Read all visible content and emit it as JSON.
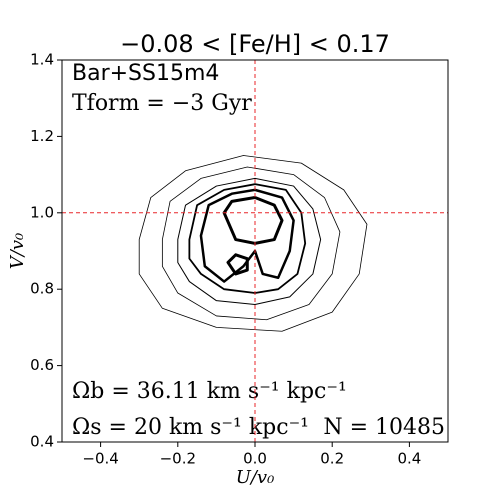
{
  "chart_data": {
    "type": "contour",
    "title": "−0.08 < [Fe/H] < 0.17",
    "x_label": "U/v₀",
    "y_label": "V/v₀",
    "annotations": [
      "Bar+SS15m4",
      "Tform = −3 Gyr",
      "Ωb = 36.11 km s⁻¹ kpc⁻¹",
      "Ωs = 20 km s⁻¹ kpc⁻¹",
      "N = 10485"
    ],
    "xlim": [
      -0.5,
      0.5
    ],
    "ylim": [
      0.4,
      1.4
    ],
    "xticks": [
      {
        "value": -0.4,
        "label": "−0.4"
      },
      {
        "value": -0.2,
        "label": "−0.2"
      },
      {
        "value": 0,
        "label": "0.0"
      },
      {
        "value": 0.2,
        "label": "0.2"
      },
      {
        "value": 0.4,
        "label": "0.4"
      }
    ],
    "yticks": [
      {
        "value": 0.4,
        "label": "0.4"
      },
      {
        "value": 0.6,
        "label": "0.6"
      },
      {
        "value": 0.8,
        "label": "0.8"
      },
      {
        "value": 1.0,
        "label": "1.0"
      },
      {
        "value": 1.2,
        "label": "1.2"
      },
      {
        "value": 1.4,
        "label": "1.4"
      }
    ],
    "hlines": [
      1.0
    ],
    "vlines": [
      0
    ],
    "ref_color": "#e8262a",
    "color": "#000000",
    "series": [
      {
        "linewidth": 0.8,
        "x": [
          -0.3,
          -0.27,
          -0.18,
          -0.03,
          0.12,
          0.23,
          0.29,
          0.27,
          0.2,
          0.07,
          -0.1,
          -0.24,
          -0.3
        ],
        "y": [
          0.93,
          1.04,
          1.11,
          1.15,
          1.13,
          1.06,
          0.97,
          0.84,
          0.74,
          0.69,
          0.7,
          0.75,
          0.84
        ]
      },
      {
        "linewidth": 0.8,
        "x": [
          -0.24,
          -0.22,
          -0.14,
          -0.02,
          0.1,
          0.18,
          0.22,
          0.2,
          0.14,
          0.03,
          -0.1,
          -0.2,
          -0.24
        ],
        "y": [
          0.93,
          1.03,
          1.09,
          1.12,
          1.1,
          1.04,
          0.95,
          0.84,
          0.76,
          0.72,
          0.73,
          0.79,
          0.86
        ]
      },
      {
        "linewidth": 1,
        "x": [
          -0.2,
          -0.18,
          -0.1,
          0,
          0.1,
          0.15,
          0.17,
          0.15,
          0.09,
          0,
          -0.1,
          -0.17,
          -0.2
        ],
        "y": [
          0.93,
          1.02,
          1.07,
          1.09,
          1.07,
          1.01,
          0.93,
          0.84,
          0.78,
          0.76,
          0.77,
          0.82,
          0.87
        ]
      },
      {
        "linewidth": 1.8,
        "x": [
          -0.17,
          -0.15,
          -0.08,
          0,
          0.08,
          0.12,
          0.13,
          0.11,
          0.06,
          0,
          -0.08,
          -0.14,
          -0.17
        ],
        "y": [
          0.93,
          1.02,
          1.06,
          1.075,
          1.06,
          1.0,
          0.92,
          0.84,
          0.8,
          0.79,
          0.8,
          0.84,
          0.88
        ]
      },
      {
        "linewidth": 2.5,
        "x": [
          -0.14,
          -0.12,
          -0.06,
          0,
          0.07,
          0.1,
          0.09,
          0.06,
          0.02,
          0,
          -0.03,
          -0.08,
          -0.13
        ],
        "y": [
          0.94,
          1.02,
          1.05,
          1.06,
          1.04,
          0.98,
          0.9,
          0.83,
          0.84,
          0.9,
          0.86,
          0.82,
          0.86
        ]
      },
      {
        "linewidth": 3,
        "x": [
          -0.08,
          -0.06,
          0,
          0.05,
          0.07,
          0.05,
          0,
          -0.05
        ],
        "y": [
          1.0,
          1.03,
          1.04,
          1.02,
          0.98,
          0.93,
          0.92,
          0.93
        ]
      },
      {
        "linewidth": 3,
        "x": [
          -0.07,
          -0.05,
          -0.02,
          -0.02,
          -0.05
        ],
        "y": [
          0.87,
          0.89,
          0.88,
          0.85,
          0.84
        ]
      }
    ]
  }
}
